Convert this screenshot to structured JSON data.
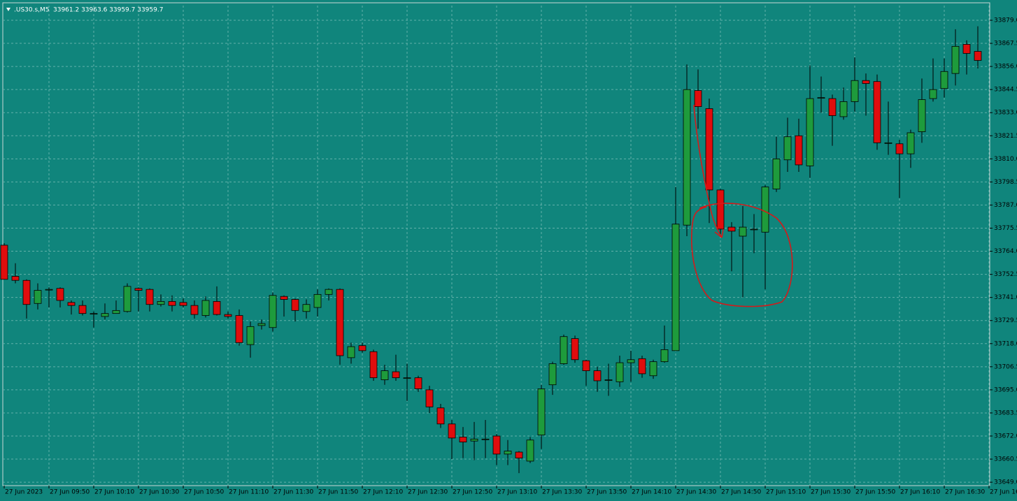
{
  "chart_data": {
    "type": "candlestick",
    "symbol": ".US30.s,M5",
    "header_prices": "33961.2 33963.6 33959.7 33959.7",
    "background": "#10857c",
    "up_color": "#1e9b3c",
    "down_color": "#e00d0d",
    "grid": true,
    "categories": [
      "27 Jun 2023",
      null,
      null,
      null,
      "27 Jun 09:50",
      null,
      null,
      null,
      "27 Jun 10:10",
      null,
      null,
      null,
      "27 Jun 10:30",
      null,
      null,
      null,
      "27 Jun 10:50",
      null,
      null,
      null,
      "27 Jun 11:10",
      null,
      null,
      null,
      "27 Jun 11:30",
      null,
      null,
      null,
      "27 Jun 11:50",
      null,
      null,
      null,
      "27 Jun 12:10",
      null,
      null,
      null,
      "27 Jun 12:30",
      null,
      null,
      null,
      "27 Jun 12:50",
      null,
      null,
      null,
      "27 Jun 13:10",
      null,
      null,
      null,
      "27 Jun 13:30",
      null,
      null,
      null,
      "27 Jun 13:50",
      null,
      null,
      null,
      "27 Jun 14:10",
      null,
      null,
      null,
      "27 Jun 14:30",
      null,
      null,
      null,
      "27 Jun 14:50",
      null,
      null,
      null,
      "27 Jun 15:10",
      null,
      null,
      null,
      "27 Jun 15:30",
      null,
      null,
      null,
      "27 Jun 15:50",
      null,
      null,
      null,
      "27 Jun 16:10",
      null,
      null,
      null,
      "27 Jun 16:30",
      null,
      null,
      null,
      "27 Jun 16"
    ],
    "open": [
      33767,
      33751.5,
      33749.5,
      33738,
      33745,
      33745.5,
      33738.5,
      33737,
      33733,
      33731.5,
      33733,
      33734,
      33745.5,
      33745,
      33737.5,
      33739,
      33738.5,
      33737,
      33732,
      33739,
      33732.5,
      33732,
      33717.5,
      33727,
      33726,
      33741.5,
      33740,
      33734,
      33736,
      33742.5,
      33745,
      33711,
      33717,
      33714,
      33700,
      33704,
      33701,
      33701,
      33695,
      33686,
      33678,
      33671.5,
      33669.5,
      33670.5,
      33672,
      33663,
      33664,
      33659.5,
      33672.5,
      33697.5,
      33708,
      33720.5,
      33709.5,
      33704.5,
      33700,
      33699,
      33708.5,
      33710.5,
      33702,
      33709,
      33714.5,
      33777,
      33844,
      33835,
      33794.5,
      33776,
      33771.5,
      33775,
      33773.5,
      33795,
      33809.5,
      33821.5,
      33806.5,
      33840.5,
      33840,
      33831,
      33838.5,
      33849,
      33848.5,
      33818,
      33817.5,
      33812.5,
      33823.5,
      33840,
      33845,
      33852.5,
      33867,
      33863.5,
      null
    ],
    "high": [
      33768,
      33758,
      33750,
      33748,
      33746,
      33746,
      33739.5,
      33739.5,
      33734,
      33738,
      33739.5,
      33748,
      33746,
      33745.5,
      33742.5,
      33742,
      33740.5,
      33739.5,
      33741.5,
      33746.5,
      33734,
      33735,
      33729,
      33730,
      33743.5,
      33742,
      33740.5,
      33740,
      33745,
      33745.5,
      33745.5,
      33718.5,
      33718.5,
      33715,
      33707.5,
      33712.5,
      33708,
      33702,
      33697,
      33688,
      33680,
      33676.5,
      33679,
      33680,
      33673,
      33670,
      33664.5,
      33671.5,
      33697.5,
      33709,
      33722.5,
      33722,
      33710,
      33706.5,
      33708,
      33712,
      33714.5,
      33712,
      33710,
      33727,
      33796,
      33857,
      33854.5,
      33840,
      33795,
      33778.5,
      33786.5,
      33782.5,
      33797,
      33821,
      33830.5,
      33830,
      33856.5,
      33851,
      33842,
      33845.5,
      33860.5,
      33852.5,
      33852,
      33838.5,
      33819.5,
      33824.5,
      33850,
      33860,
      33860,
      33874.5,
      33869,
      33876,
      null
    ],
    "low": [
      33750,
      33748,
      33730.5,
      33735,
      33736,
      33736,
      33732.5,
      33732,
      33726,
      33730,
      33733,
      33733.5,
      33734,
      33734,
      33736.5,
      33734,
      33736,
      33730.5,
      33731,
      33732,
      33730.5,
      33717,
      33711,
      33725,
      33724,
      33731.5,
      33729,
      33730.5,
      33731.5,
      33739.5,
      33707.5,
      33708,
      33713.5,
      33699.5,
      33697.5,
      33699.5,
      33689.5,
      33694,
      33683.5,
      33676,
      33660.5,
      33661,
      33660,
      33661,
      33657.5,
      33657.5,
      33653.5,
      33658.5,
      33665.5,
      33692.5,
      33707.5,
      33708.5,
      33697,
      33694,
      33692,
      33696.5,
      33699,
      33701,
      33700.5,
      33708.5,
      33714.5,
      33771.5,
      33825,
      33778,
      33772.5,
      33754,
      33741,
      33763,
      33745,
      33793.5,
      33803.5,
      33803.5,
      33800.5,
      33833,
      33816.5,
      33829.5,
      33833.5,
      33831.5,
      33814.5,
      33812,
      33790.5,
      33805.5,
      33818,
      33838.5,
      33840.5,
      33846.5,
      33852,
      33855,
      null
    ],
    "close": [
      33750,
      33749.5,
      33737.5,
      33744.5,
      33745,
      33739.5,
      33737,
      33733,
      33733,
      33733,
      33734.5,
      33746.5,
      33744.5,
      33737.5,
      33739,
      33737,
      33737,
      33732.5,
      33739.5,
      33732.5,
      33731.5,
      33718.5,
      33726.5,
      33728,
      33742,
      33740,
      33734.5,
      33737.5,
      33742.5,
      33745,
      33712,
      33716.5,
      33714.5,
      33701,
      33704.5,
      33701,
      33701,
      33695.5,
      33686.5,
      33678,
      33671,
      33669,
      33670.5,
      33670.5,
      33663,
      33664.5,
      33661,
      33670,
      33695.5,
      33708,
      33721.5,
      33710,
      33704.5,
      33699.5,
      33700,
      33708.5,
      33710,
      33703,
      33709,
      33715,
      33777.5,
      33844.5,
      33836,
      33794.5,
      33775,
      33774,
      33776,
      33775,
      33796,
      33810,
      33821,
      33807,
      33840,
      33840.5,
      33831.5,
      33838.5,
      33849,
      33847.5,
      33818,
      33818,
      33812.5,
      33823,
      33839.5,
      33844.5,
      33853.5,
      33866,
      33862.5,
      33859,
      null
    ],
    "ylim": [
      33647.3,
      33886.3
    ],
    "yticks": [
      {
        "value": 33879,
        "label": "33879.0"
      },
      {
        "value": 33867.5,
        "label": "33867.5"
      },
      {
        "value": 33856,
        "label": "33856.0"
      },
      {
        "value": 33844.5,
        "label": "33844.5"
      },
      {
        "value": 33833,
        "label": "33833.0"
      },
      {
        "value": 33821.5,
        "label": "33821.5"
      },
      {
        "value": 33810,
        "label": "33810.0"
      },
      {
        "value": 33798.5,
        "label": "33798.5"
      },
      {
        "value": 33787,
        "label": "33787.0"
      },
      {
        "value": 33775.5,
        "label": "33775.5"
      },
      {
        "value": 33764,
        "label": "33764.0"
      },
      {
        "value": 33752.5,
        "label": "33752.5"
      },
      {
        "value": 33741,
        "label": "33741.0"
      },
      {
        "value": 33729.5,
        "label": "33729.5"
      },
      {
        "value": 33718,
        "label": "33718.0"
      },
      {
        "value": 33706.5,
        "label": "33706.5"
      },
      {
        "value": 33695,
        "label": "33695.0"
      },
      {
        "value": 33683.5,
        "label": "33683.5"
      },
      {
        "value": 33672,
        "label": "33672.0"
      },
      {
        "value": 33660.5,
        "label": "33660.5"
      },
      {
        "value": 33649,
        "label": "33649.0"
      }
    ]
  }
}
